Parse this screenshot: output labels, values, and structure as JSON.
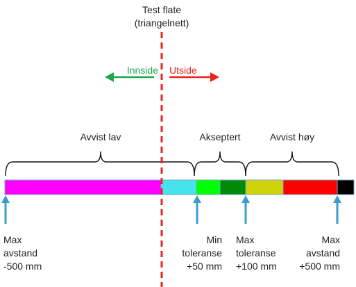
{
  "surface": {
    "title_line1": "Test flate",
    "title_line2": "(triangelnett)"
  },
  "direction": {
    "inside_label": "Innside",
    "outside_label": "Utside",
    "inside_color": "#1aa84b",
    "outside_color": "#e8241c"
  },
  "ranges": {
    "rejected_low": "Avvist lav",
    "accepted": "Akseptert",
    "rejected_high": "Avvist høy"
  },
  "bar_segments": [
    {
      "name": "magenta",
      "color": "#ff00ff"
    },
    {
      "name": "cyan",
      "color": "#45e3ec"
    },
    {
      "name": "bright-green",
      "color": "#00ff00"
    },
    {
      "name": "dark-green",
      "color": "#008a0a"
    },
    {
      "name": "yellow-green",
      "color": "#d0d20c"
    },
    {
      "name": "red",
      "color": "#ff0000"
    },
    {
      "name": "black",
      "color": "#000000"
    }
  ],
  "markers": [
    {
      "line1": "Max",
      "line2": "avstand",
      "line3": "-500 mm"
    },
    {
      "line1": "Min",
      "line2": "toleranse",
      "line3": "+50 mm"
    },
    {
      "line1": "Max",
      "line2": "toleranse",
      "line3": "+100 mm"
    },
    {
      "line1": "Max",
      "line2": "avstand",
      "line3": "+500 mm"
    }
  ],
  "colors": {
    "surface_line": "#e8241c",
    "marker_arrow": "#3b9ccc",
    "bracket": "#111111",
    "segment_border": "#7aa9c9"
  }
}
